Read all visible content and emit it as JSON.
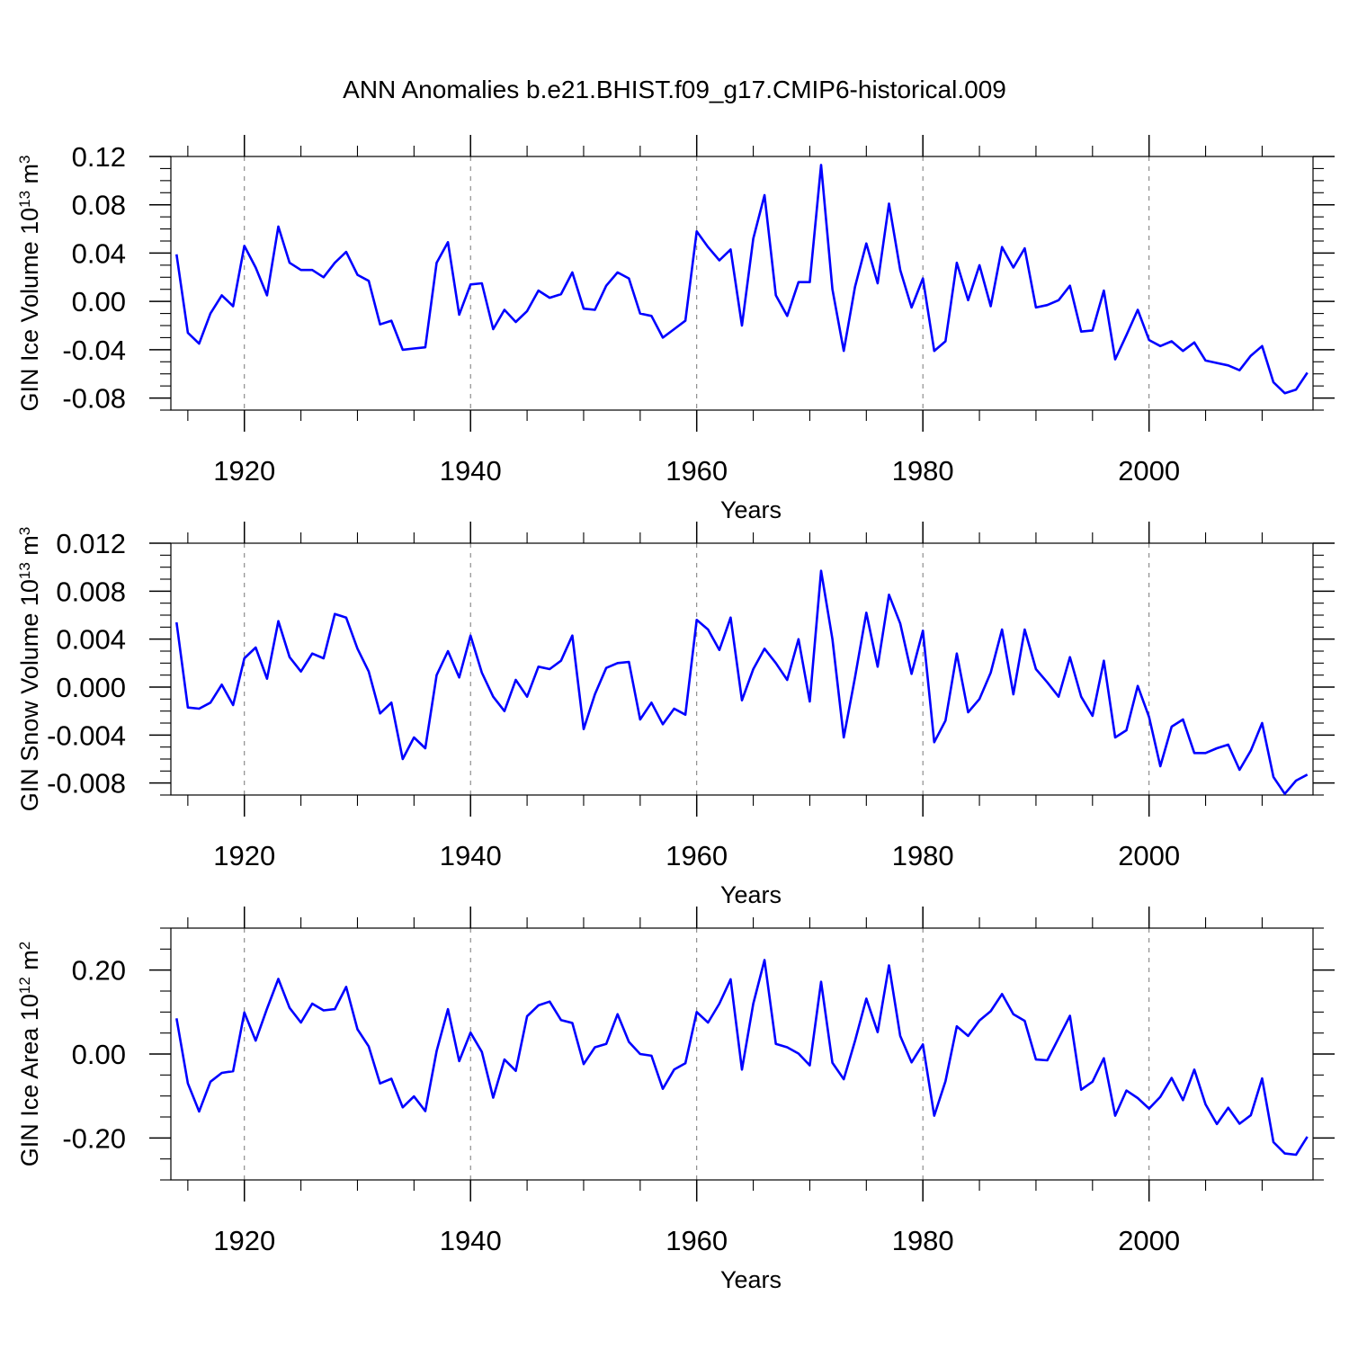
{
  "title": "ANN Anomalies b.e21.BHIST.f09_g17.CMIP6-historical.009",
  "colors": {
    "line": "#0000ff",
    "axis": "#000000",
    "grid": "#777777"
  },
  "chart_data": [
    {
      "type": "line",
      "name": "ice-volume",
      "ylabel": {
        "base": "GIN Ice Volume 10",
        "exp": "13",
        "unit": " m",
        "unit_exp": "3"
      },
      "xlabel": "Years",
      "xlim": [
        1913.5,
        2014.5
      ],
      "ylim": [
        -0.09,
        0.12
      ],
      "xticks": [
        1920,
        1940,
        1960,
        1980,
        2000
      ],
      "xtick_labels": [
        "1920",
        "1940",
        "1960",
        "1980",
        "2000"
      ],
      "yticks": [
        -0.08,
        -0.04,
        0.0,
        0.04,
        0.08,
        0.12
      ],
      "ytick_labels": [
        "-0.08",
        "-0.04",
        "0.00",
        "0.04",
        "0.08",
        "0.12"
      ],
      "grid": "dashed vertical at major x ticks",
      "x_start": 1914,
      "values": [
        0.039,
        -0.026,
        -0.035,
        -0.01,
        0.005,
        -0.004,
        0.046,
        0.028,
        0.005,
        0.062,
        0.032,
        0.026,
        0.026,
        0.02,
        0.032,
        0.041,
        0.022,
        0.017,
        -0.019,
        -0.016,
        -0.04,
        -0.039,
        -0.038,
        0.032,
        0.049,
        -0.011,
        0.014,
        0.015,
        -0.023,
        -0.007,
        -0.017,
        -0.008,
        0.009,
        0.003,
        0.006,
        0.024,
        -0.006,
        -0.007,
        0.013,
        0.024,
        0.019,
        -0.01,
        -0.012,
        -0.03,
        -0.023,
        -0.016,
        0.058,
        0.045,
        0.034,
        0.043,
        -0.02,
        0.052,
        0.088,
        0.005,
        -0.012,
        0.016,
        0.016,
        0.113,
        0.01,
        -0.041,
        0.012,
        0.048,
        0.015,
        0.081,
        0.026,
        -0.005,
        0.019,
        -0.041,
        -0.033,
        0.032,
        0.001,
        0.03,
        -0.004,
        0.045,
        0.028,
        0.044,
        -0.005,
        -0.003,
        0.001,
        0.013,
        -0.025,
        -0.024,
        0.009,
        -0.048,
        -0.028,
        -0.007,
        -0.032,
        -0.037,
        -0.033,
        -0.041,
        -0.034,
        -0.049,
        -0.051,
        -0.053,
        -0.057,
        -0.045,
        -0.037,
        -0.067,
        -0.076,
        -0.073,
        -0.059
      ]
    },
    {
      "type": "line",
      "name": "snow-volume",
      "ylabel": {
        "base": "GIN Snow Volume 10",
        "exp": "13",
        "unit": " m",
        "unit_exp": "3"
      },
      "xlabel": "Years",
      "xlim": [
        1913.5,
        2014.5
      ],
      "ylim": [
        -0.009,
        0.012
      ],
      "xticks": [
        1920,
        1940,
        1960,
        1980,
        2000
      ],
      "xtick_labels": [
        "1920",
        "1940",
        "1960",
        "1980",
        "2000"
      ],
      "yticks": [
        -0.008,
        -0.004,
        0.0,
        0.004,
        0.008,
        0.012
      ],
      "ytick_labels": [
        "-0.008",
        "-0.004",
        "0.000",
        "0.004",
        "0.008",
        "0.012"
      ],
      "grid": "dashed vertical at major x ticks",
      "x_start": 1914,
      "values": [
        0.0054,
        -0.0017,
        -0.0018,
        -0.0013,
        0.0002,
        -0.0015,
        0.0024,
        0.0033,
        0.0007,
        0.0055,
        0.0025,
        0.0013,
        0.0028,
        0.0024,
        0.0061,
        0.0058,
        0.0032,
        0.0013,
        -0.0022,
        -0.0013,
        -0.006,
        -0.0042,
        -0.0051,
        0.001,
        0.003,
        0.0008,
        0.0043,
        0.0012,
        -0.0008,
        -0.002,
        0.0006,
        -0.0008,
        0.0017,
        0.0015,
        0.0022,
        0.0043,
        -0.0035,
        -0.0006,
        0.0016,
        0.002,
        0.0021,
        -0.0027,
        -0.0013,
        -0.0031,
        -0.0018,
        -0.0023,
        0.0056,
        0.0048,
        0.0031,
        0.0058,
        -0.0011,
        0.0015,
        0.0032,
        0.002,
        0.0006,
        0.004,
        -0.0012,
        0.0097,
        0.004,
        -0.0042,
        0.0008,
        0.0062,
        0.0017,
        0.0077,
        0.0053,
        0.0011,
        0.0047,
        -0.0046,
        -0.0028,
        0.0028,
        -0.0021,
        -0.001,
        0.0012,
        0.0048,
        -0.0006,
        0.0048,
        0.0015,
        0.0004,
        -0.0008,
        0.0025,
        -0.0008,
        -0.0024,
        0.0022,
        -0.0042,
        -0.0036,
        0.0001,
        -0.0025,
        -0.0066,
        -0.0033,
        -0.0027,
        -0.0055,
        -0.0055,
        -0.0051,
        -0.0048,
        -0.0069,
        -0.0053,
        -0.003,
        -0.0075,
        -0.0089,
        -0.0078,
        -0.0073
      ]
    },
    {
      "type": "line",
      "name": "ice-area",
      "ylabel": {
        "base": "GIN Ice Area 10",
        "exp": "12",
        "unit": " m",
        "unit_exp": "2"
      },
      "xlabel": "Years",
      "xlim": [
        1913.5,
        2014.5
      ],
      "ylim": [
        -0.3,
        0.3
      ],
      "xticks": [
        1920,
        1940,
        1960,
        1980,
        2000
      ],
      "xtick_labels": [
        "1920",
        "1940",
        "1960",
        "1980",
        "2000"
      ],
      "yticks": [
        -0.2,
        0.0,
        0.2
      ],
      "ytick_labels": [
        "-0.20",
        "0.00",
        "0.20"
      ],
      "grid": "dashed vertical at major x ticks",
      "x_start": 1914,
      "values": [
        0.085,
        -0.07,
        -0.137,
        -0.066,
        -0.045,
        -0.041,
        0.099,
        0.032,
        0.108,
        0.179,
        0.11,
        0.075,
        0.12,
        0.104,
        0.107,
        0.16,
        0.059,
        0.018,
        -0.07,
        -0.059,
        -0.127,
        -0.101,
        -0.136,
        0.007,
        0.107,
        -0.017,
        0.051,
        0.005,
        -0.104,
        -0.013,
        -0.04,
        0.09,
        0.116,
        0.125,
        0.081,
        0.074,
        -0.024,
        0.016,
        0.024,
        0.095,
        0.029,
        0.0,
        -0.004,
        -0.083,
        -0.037,
        -0.022,
        0.1,
        0.075,
        0.12,
        0.178,
        -0.037,
        0.12,
        0.224,
        0.024,
        0.016,
        0.001,
        -0.027,
        0.172,
        -0.021,
        -0.06,
        0.031,
        0.132,
        0.052,
        0.211,
        0.043,
        -0.02,
        0.023,
        -0.147,
        -0.065,
        0.066,
        0.043,
        0.08,
        0.102,
        0.143,
        0.095,
        0.079,
        -0.013,
        -0.015,
        0.038,
        0.091,
        -0.085,
        -0.066,
        -0.01,
        -0.147,
        -0.087,
        -0.105,
        -0.13,
        -0.102,
        -0.057,
        -0.11,
        -0.037,
        -0.12,
        -0.167,
        -0.128,
        -0.166,
        -0.146,
        -0.058,
        -0.21,
        -0.237,
        -0.24,
        -0.197
      ]
    }
  ]
}
